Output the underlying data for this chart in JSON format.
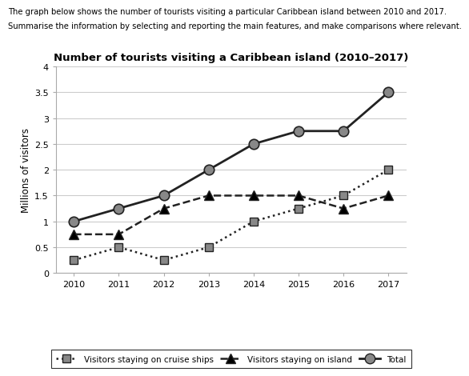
{
  "title": "Number of tourists visiting a Caribbean island (2010–2017)",
  "ylabel": "Millions of visitors",
  "header_line1": "The graph below shows the number of tourists visiting a particular Caribbean island between 2010 and 2017.",
  "header_line2": "Summarise the information by selecting and reporting the main features, and make comparisons where relevant.",
  "years": [
    2010,
    2011,
    2012,
    2013,
    2014,
    2015,
    2016,
    2017
  ],
  "cruise_ships": [
    0.25,
    0.5,
    0.25,
    0.5,
    1.0,
    1.25,
    1.5,
    2.0
  ],
  "island": [
    0.75,
    0.75,
    1.25,
    1.5,
    1.5,
    1.5,
    1.25,
    1.5
  ],
  "total": [
    1.0,
    1.25,
    1.5,
    2.0,
    2.5,
    2.75,
    2.75,
    3.5
  ],
  "ylim": [
    0,
    4
  ],
  "yticks": [
    0,
    0.5,
    1.0,
    1.5,
    2.0,
    2.5,
    3.0,
    3.5,
    4.0
  ],
  "marker_gray": "#888888",
  "line_dark": "#222222",
  "grid_color": "#cccccc",
  "background_color": "#ffffff"
}
